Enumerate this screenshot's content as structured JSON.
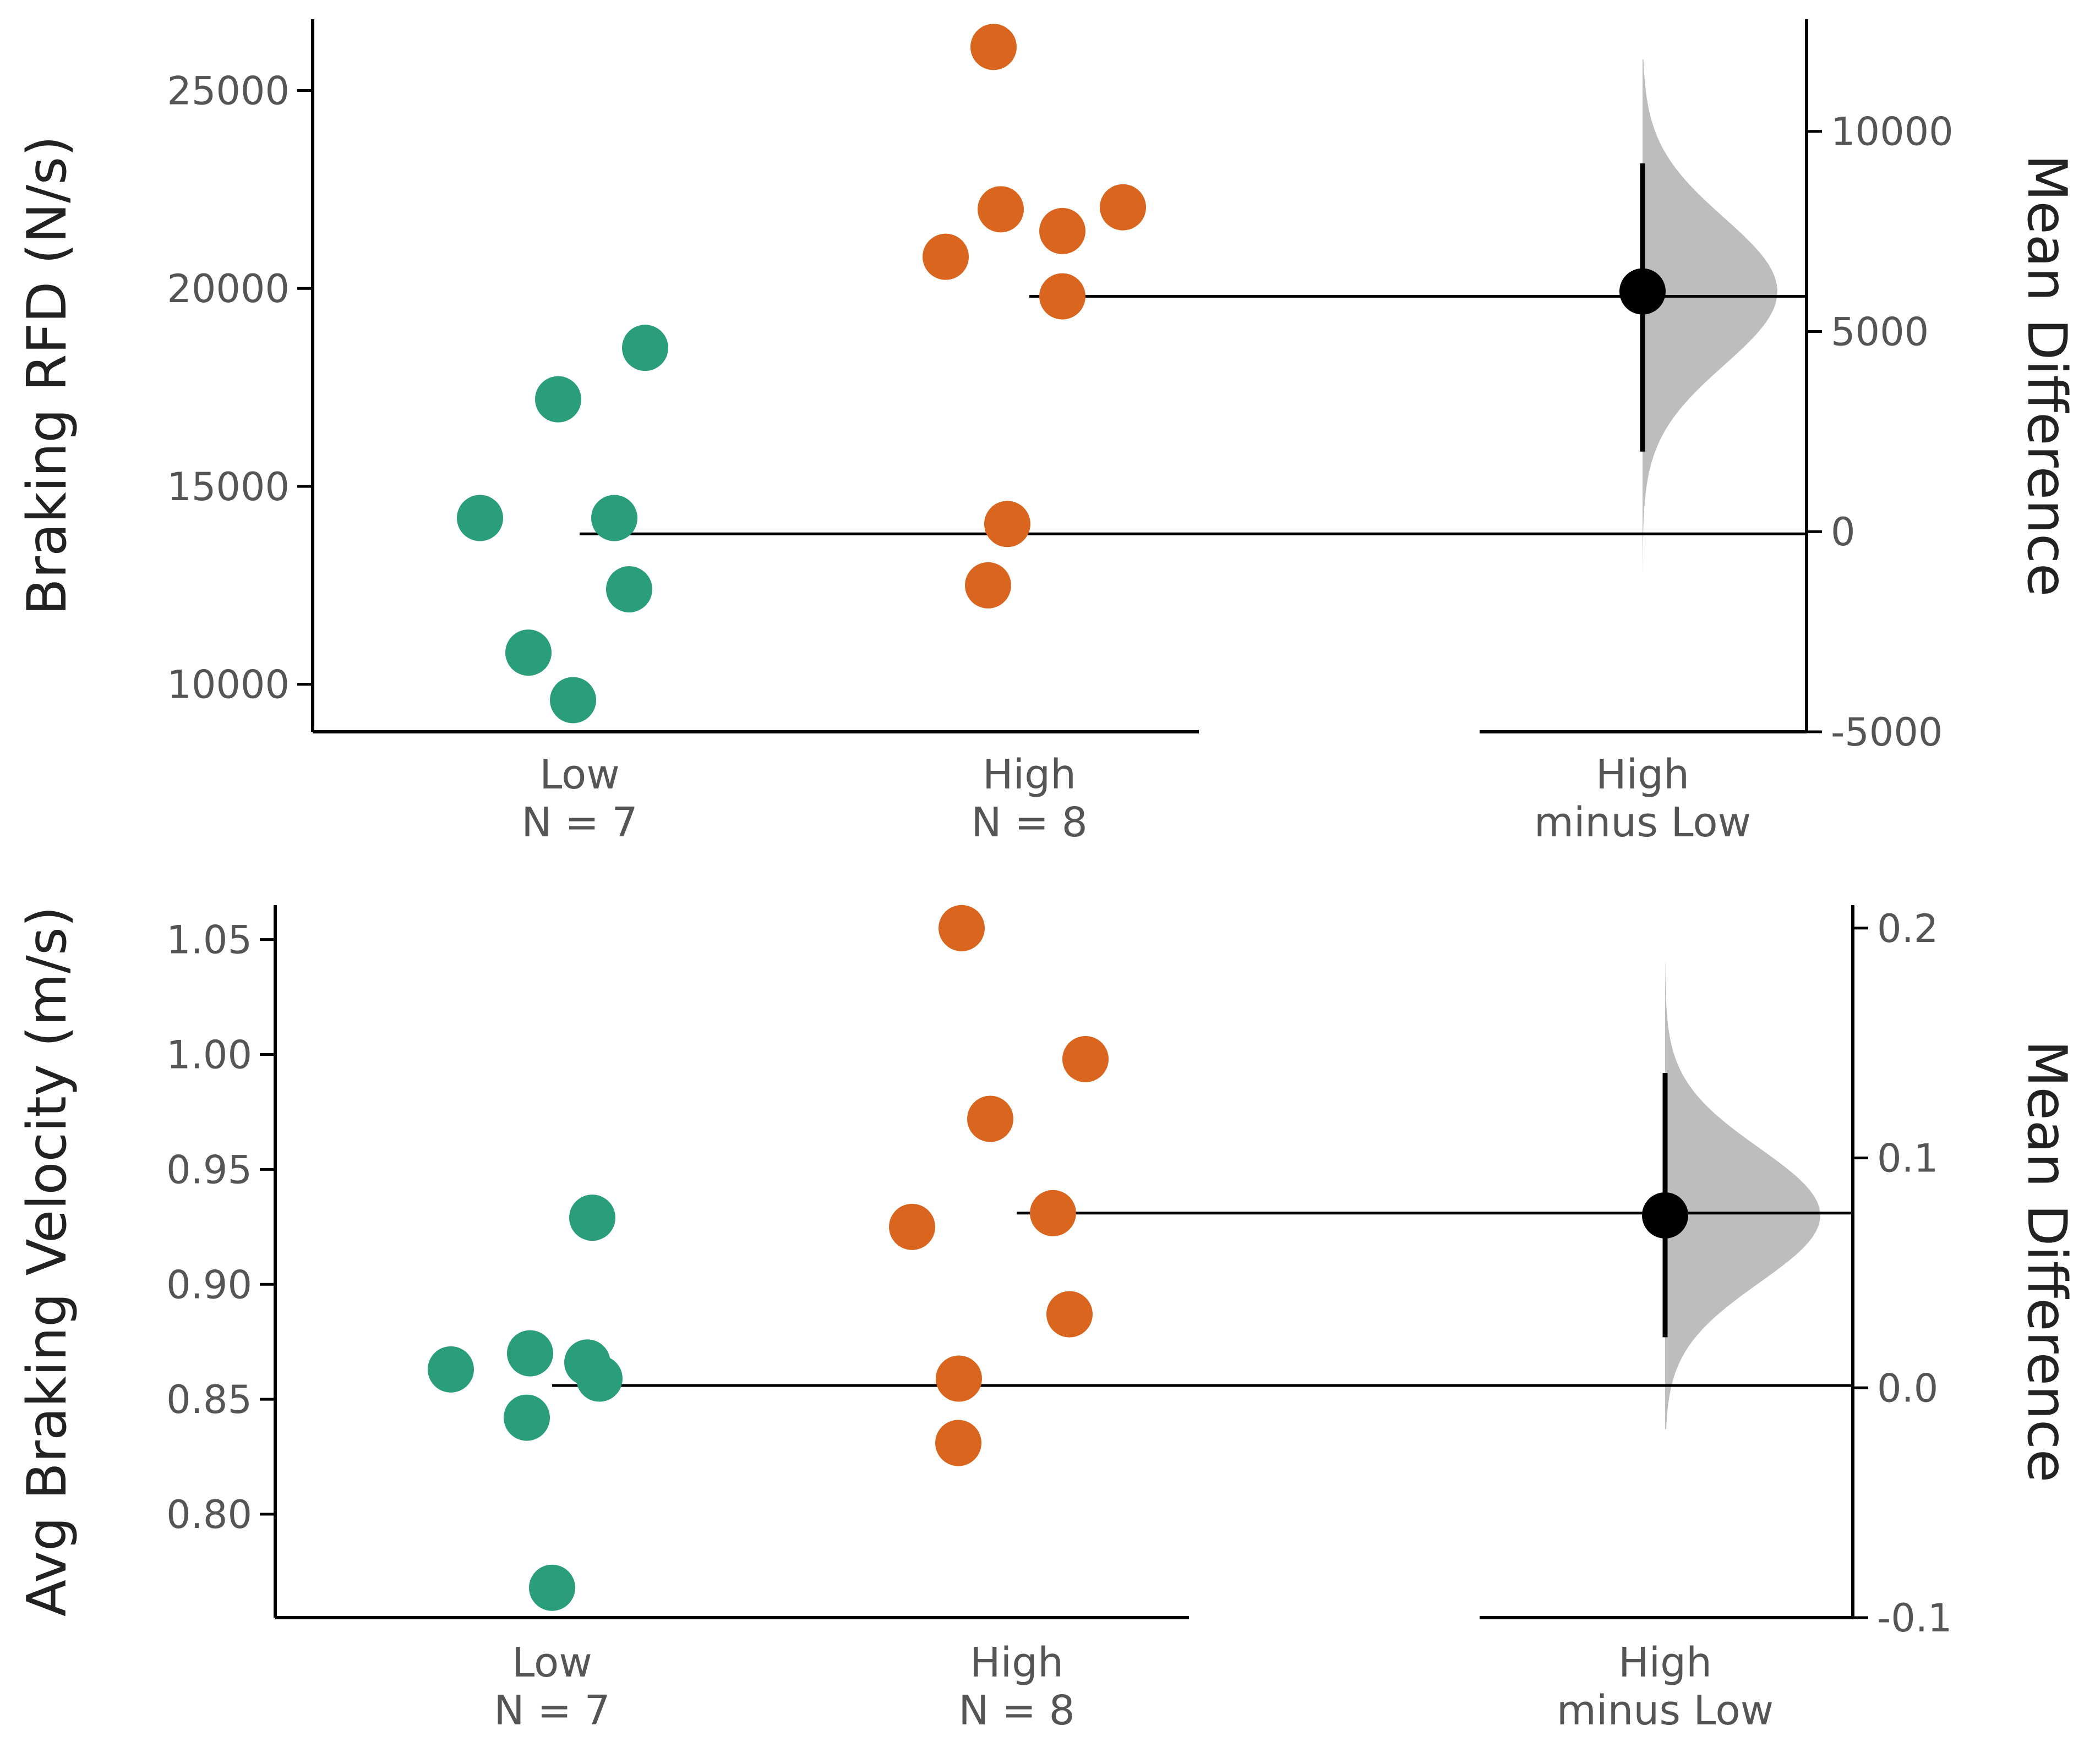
{
  "chart_data": [
    {
      "type": "estimation-plot",
      "ylabel": "Braking RFD (N/s)",
      "ylabel_right": "Mean Difference",
      "ylim": [
        8800,
        26800
      ],
      "ylim_right": [
        -5000,
        12800
      ],
      "y_ticks": [
        10000,
        15000,
        20000,
        25000
      ],
      "y_tick_labels": [
        "10000",
        "15000",
        "20000",
        "25000"
      ],
      "y_ticks_right": [
        -5000,
        0,
        5000,
        10000
      ],
      "y_tick_labels_right": [
        "-5000",
        "0",
        "5000",
        "10000"
      ],
      "colors": {
        "Low": "#2a9d7b",
        "High": "#d9651e",
        "distribution": "#bdbdbd"
      },
      "groups": [
        {
          "id": "low",
          "name": "Low",
          "n_label": "N = 7",
          "color": "#2a9d7b",
          "values": [
            9600,
            10800,
            12400,
            14200,
            14200,
            17200,
            18500
          ],
          "mean": 13800
        },
        {
          "id": "high",
          "name": "High",
          "n_label": "N = 8",
          "color": "#d9651e",
          "values": [
            12500,
            14050,
            19800,
            20800,
            21450,
            22000,
            22050,
            26100
          ],
          "mean": 19800
        }
      ],
      "contrast": {
        "label": [
          "High",
          "minus Low"
        ],
        "mean_difference": 6000,
        "ci": [
          2000,
          9200
        ],
        "distribution_range": [
          -1000,
          11800
        ]
      }
    },
    {
      "type": "estimation-plot",
      "ylabel": "Avg Braking Velocity (m/s)",
      "ylabel_right": "Mean Difference",
      "ylim": [
        0.755,
        1.065
      ],
      "ylim_right": [
        -0.1,
        0.21
      ],
      "y_ticks": [
        0.8,
        0.85,
        0.9,
        0.95,
        1.0,
        1.05
      ],
      "y_tick_labels": [
        "0.80",
        "0.85",
        "0.90",
        "0.95",
        "1.00",
        "1.05"
      ],
      "y_ticks_right": [
        -0.1,
        0.0,
        0.1,
        0.2
      ],
      "y_tick_labels_right": [
        "-0.1",
        "0.0",
        "0.1",
        "0.2"
      ],
      "colors": {
        "Low": "#2a9d7b",
        "High": "#d9651e",
        "distribution": "#bdbdbd"
      },
      "groups": [
        {
          "id": "low",
          "name": "Low",
          "n_label": "N = 7",
          "color": "#2a9d7b",
          "values": [
            0.768,
            0.842,
            0.859,
            0.863,
            0.866,
            0.87,
            0.929
          ],
          "mean": 0.856
        },
        {
          "id": "high",
          "name": "High",
          "n_label": "N = 8",
          "color": "#d9651e",
          "values": [
            0.831,
            0.859,
            0.887,
            0.925,
            0.931,
            0.972,
            0.998,
            1.055
          ],
          "mean": 0.931
        }
      ],
      "contrast": {
        "label": [
          "High",
          "minus Low"
        ],
        "mean_difference": 0.075,
        "ci": [
          0.022,
          0.137
        ],
        "distribution_range": [
          -0.018,
          0.185
        ]
      }
    }
  ]
}
